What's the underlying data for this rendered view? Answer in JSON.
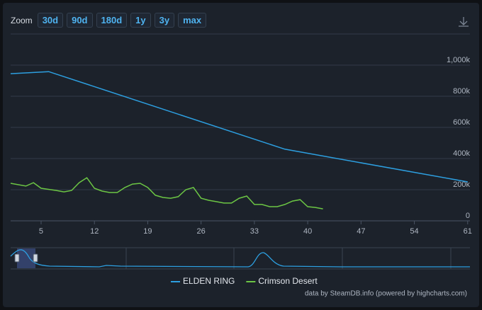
{
  "zoom": {
    "label": "Zoom",
    "buttons": [
      "30d",
      "90d",
      "180d",
      "1y",
      "3y",
      "max"
    ]
  },
  "credit": "data by SteamDB.info (powered by highcharts.com)",
  "chart_data": {
    "type": "line",
    "series": [
      {
        "name": "ELDEN RING",
        "color": "#2d9fe0",
        "x": [
          1,
          6,
          37,
          61
        ],
        "values": [
          945000,
          958000,
          460000,
          250000
        ]
      },
      {
        "name": "Crimson Desert",
        "color": "#6cc644",
        "x": [
          1,
          3,
          4,
          5,
          7,
          8,
          9,
          10,
          11,
          12,
          13,
          14,
          15,
          16,
          17,
          18,
          19,
          20,
          21,
          22,
          23,
          24,
          25,
          26,
          27,
          28,
          29,
          30,
          31,
          32,
          33,
          34,
          35,
          36,
          37,
          38,
          39,
          40,
          41,
          42
        ],
        "values": [
          241000,
          223000,
          245000,
          209000,
          195000,
          186000,
          195000,
          245000,
          277000,
          209000,
          191000,
          182000,
          182000,
          214000,
          236000,
          241000,
          214000,
          164000,
          150000,
          145000,
          155000,
          200000,
          214000,
          145000,
          132000,
          123000,
          114000,
          114000,
          145000,
          159000,
          105000,
          105000,
          91000,
          91000,
          105000,
          127000,
          136000,
          91000,
          86000,
          77000
        ]
      }
    ],
    "xlim": [
      1,
      61.3
    ],
    "xticks": [
      5,
      12,
      19,
      26,
      33,
      40,
      47,
      54,
      61
    ],
    "ylim": [
      0,
      1200000
    ],
    "yticks": [
      0,
      {
        "value": 200000,
        "label": "200k"
      },
      {
        "value": 400000,
        "label": "400k"
      },
      {
        "value": 600000,
        "label": "600k"
      },
      {
        "value": 800000,
        "label": "800k"
      },
      {
        "value": 1000000,
        "label": "1,000k"
      }
    ],
    "grid": true
  }
}
